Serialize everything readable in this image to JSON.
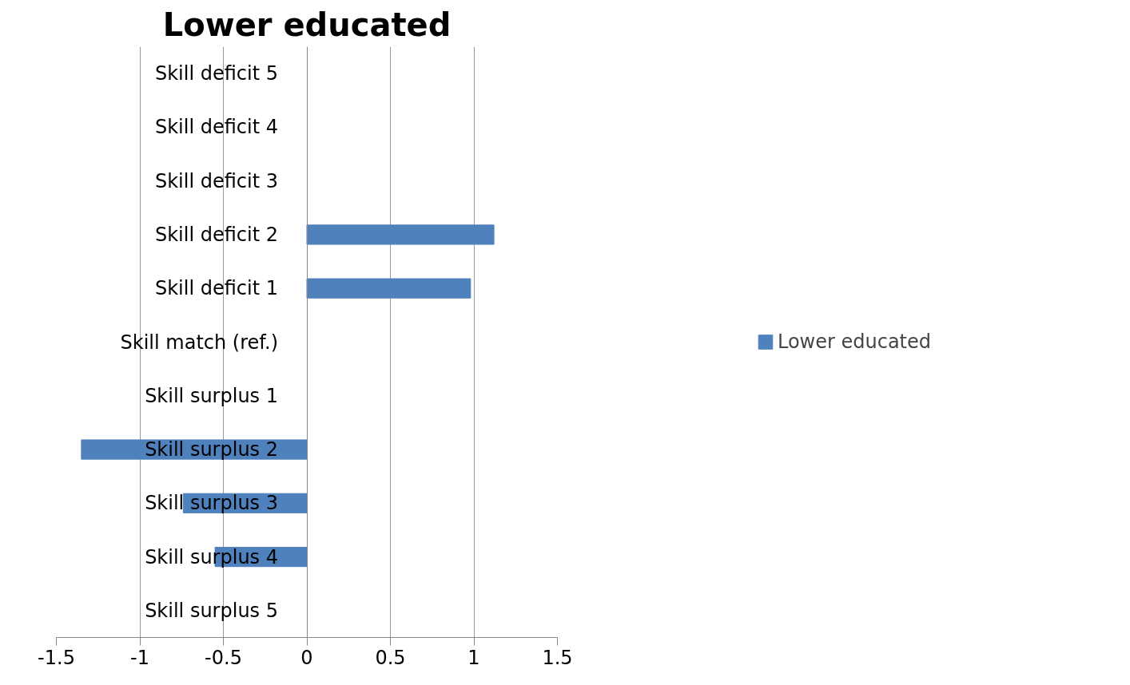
{
  "chart_data": {
    "type": "bar",
    "orientation": "horizontal",
    "title": "Lower educated",
    "categories": [
      "Skill deficit 5",
      "Skill deficit 4",
      "Skill deficit 3",
      "Skill deficit 2",
      "Skill deficit 1",
      "Skill match (ref.)",
      "Skill surplus 1",
      "Skill surplus 2",
      "Skill surplus 3",
      "Skill surplus 4",
      "Skill surplus 5"
    ],
    "series": [
      {
        "name": "Lower educated",
        "color": "#4f81bd",
        "values": [
          null,
          null,
          null,
          1.12,
          0.98,
          null,
          null,
          -1.35,
          -0.74,
          -0.55,
          null
        ]
      }
    ],
    "xlim": [
      -1.5,
      1.5
    ],
    "xticks": [
      -1.5,
      -1,
      -0.5,
      0,
      0.5,
      1,
      1.5
    ],
    "grid": "x",
    "legend": "right"
  }
}
